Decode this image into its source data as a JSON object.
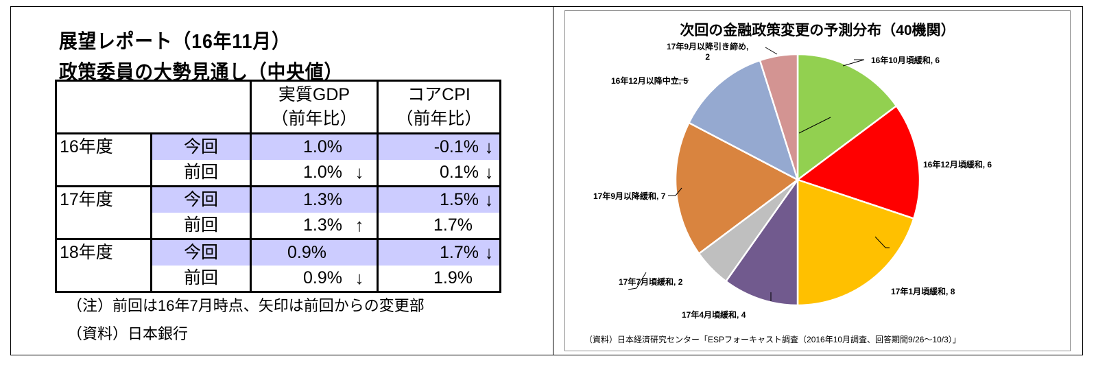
{
  "left_panel": {
    "title_line1": "展望レポート（16年11月）",
    "title_line2": "政策委員の大勢見通し（中央値）",
    "table": {
      "headers": {
        "gdp_line1": "実質GDP",
        "gdp_line2": "（前年比）",
        "cpi_line1": "コアCPI",
        "cpi_line2": "（前年比）"
      },
      "rows": [
        {
          "year": "16年度",
          "kind": "今回",
          "gdp": "1.0%",
          "gdp_arrow": "",
          "cpi": "-0.1%",
          "cpi_arrow": "↓",
          "highlight": true
        },
        {
          "year": "",
          "kind": "前回",
          "gdp": "1.0%",
          "gdp_arrow": "↓",
          "cpi": "0.1%",
          "cpi_arrow": "↓",
          "highlight": false
        },
        {
          "year": "17年度",
          "kind": "今回",
          "gdp": "1.3%",
          "gdp_arrow": "",
          "cpi": "1.5%",
          "cpi_arrow": "↓",
          "highlight": true
        },
        {
          "year": "",
          "kind": "前回",
          "gdp": "1.3%",
          "gdp_arrow": "↑",
          "cpi": "1.7%",
          "cpi_arrow": "",
          "highlight": false
        },
        {
          "year": "18年度",
          "kind": "今回",
          "gdp": "0.9%",
          "gdp_arrow": "",
          "cpi": "1.7%",
          "cpi_arrow": "↓",
          "highlight": true
        },
        {
          "year": "",
          "kind": "前回",
          "gdp": "0.9%",
          "gdp_arrow": "↓",
          "cpi": "1.9%",
          "cpi_arrow": "",
          "highlight": false
        }
      ]
    },
    "note": "（注）前回は16年7月時点、矢印は前回からの変更部",
    "source": "（資料）日本銀行",
    "highlight_color": "#ccccff"
  },
  "right_panel": {
    "source": "（資料）日本経済研究センター「ESPフォーキャスト調査（2016年10月調査、回答期間9/26～10/3）」"
  },
  "chart_data": {
    "type": "pie",
    "title": "次回の金融政策変更の予測分布（40機関）",
    "total": 40,
    "start_angle": "12 o'clock, clockwise",
    "categories": [
      "16年10月頃緩和",
      "16年12月頃緩和",
      "17年1月頃緩和",
      "17年4月頃緩和",
      "17年7月頃緩和",
      "17年9月以降緩和",
      "16年12月以降中立",
      "17年9月以降引き締め"
    ],
    "values": [
      6,
      6,
      8,
      4,
      2,
      7,
      5,
      2
    ],
    "colors": [
      "#92d050",
      "#ff0000",
      "#ffc000",
      "#715a8e",
      "#bfbfbf",
      "#d9843f",
      "#95a9d0",
      "#d39492"
    ],
    "labels": [
      "16年10月頃緩和, 6",
      "16年12月頃緩和, 6",
      "17年1月頃緩和, 8",
      "17年4月頃緩和, 4",
      "17年7月頃緩和, 2",
      "17年9月以降緩和, 7",
      "16年12月以降中立, 5",
      "17年9月以降引き締め, 2"
    ],
    "label_lines": [
      "17年9月以降引き締め,",
      "2"
    ],
    "legend": "none (data labels with leader lines)"
  }
}
